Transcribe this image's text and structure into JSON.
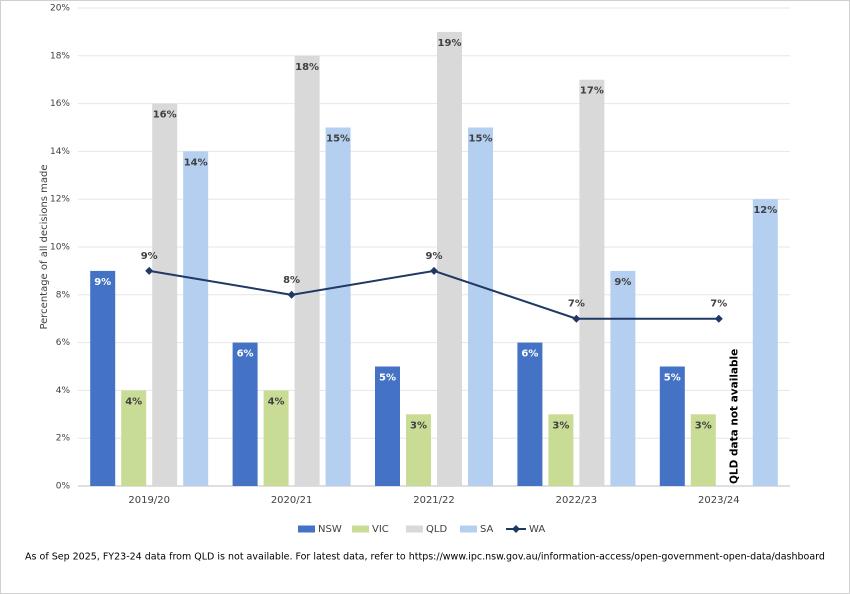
{
  "chart_data": {
    "type": "bar",
    "y_label": "Percentage of all decisions made",
    "categories": [
      "2019/20",
      "2020/21",
      "2021/22",
      "2022/23",
      "2023/24"
    ],
    "series": [
      {
        "name": "NSW",
        "color": "#4472c4",
        "values": [
          9,
          6,
          5,
          6,
          5
        ],
        "value_labels": [
          "9%",
          "6%",
          "5%",
          "6%",
          "5%"
        ]
      },
      {
        "name": "VIC",
        "color": "#c9dc95",
        "values": [
          4,
          4,
          3,
          3,
          3
        ],
        "value_labels": [
          "4%",
          "4%",
          "3%",
          "3%",
          "3%"
        ]
      },
      {
        "name": "QLD",
        "color": "#d9d9d9",
        "values": [
          16,
          18,
          19,
          17,
          null
        ],
        "value_labels": [
          "16%",
          "18%",
          "19%",
          "17%",
          null
        ]
      },
      {
        "name": "SA",
        "color": "#b4cff0",
        "values": [
          14,
          15,
          15,
          9,
          12
        ],
        "value_labels": [
          "14%",
          "15%",
          "15%",
          "9%",
          "12%"
        ]
      },
      {
        "name": "WA",
        "color": "#203864",
        "type": "line",
        "values": [
          9,
          8,
          9,
          7,
          7
        ],
        "value_labels": [
          "9%",
          "8%",
          "9%",
          "7%",
          "7%"
        ]
      }
    ],
    "annotation": "QLD data not available",
    "ylim": [
      0,
      20
    ],
    "yticks": [
      {
        "value": 0,
        "label": "0%"
      },
      {
        "value": 2,
        "label": "2%"
      },
      {
        "value": 4,
        "label": "4%"
      },
      {
        "value": 6,
        "label": "6%"
      },
      {
        "value": 8,
        "label": "8%"
      },
      {
        "value": 10,
        "label": "10%"
      },
      {
        "value": 12,
        "label": "12%"
      },
      {
        "value": 14,
        "label": "14%"
      },
      {
        "value": 16,
        "label": "16%"
      },
      {
        "value": 18,
        "label": "18%"
      },
      {
        "value": 20,
        "label": "20%"
      }
    ],
    "grid": true,
    "legend": "bottom",
    "footnote": "As of Sep 2025, FY23-24 data from QLD is not available. For latest data, refer to https://www.ipc.nsw.gov.au/information-access/open-government-open-data/dashboard"
  }
}
